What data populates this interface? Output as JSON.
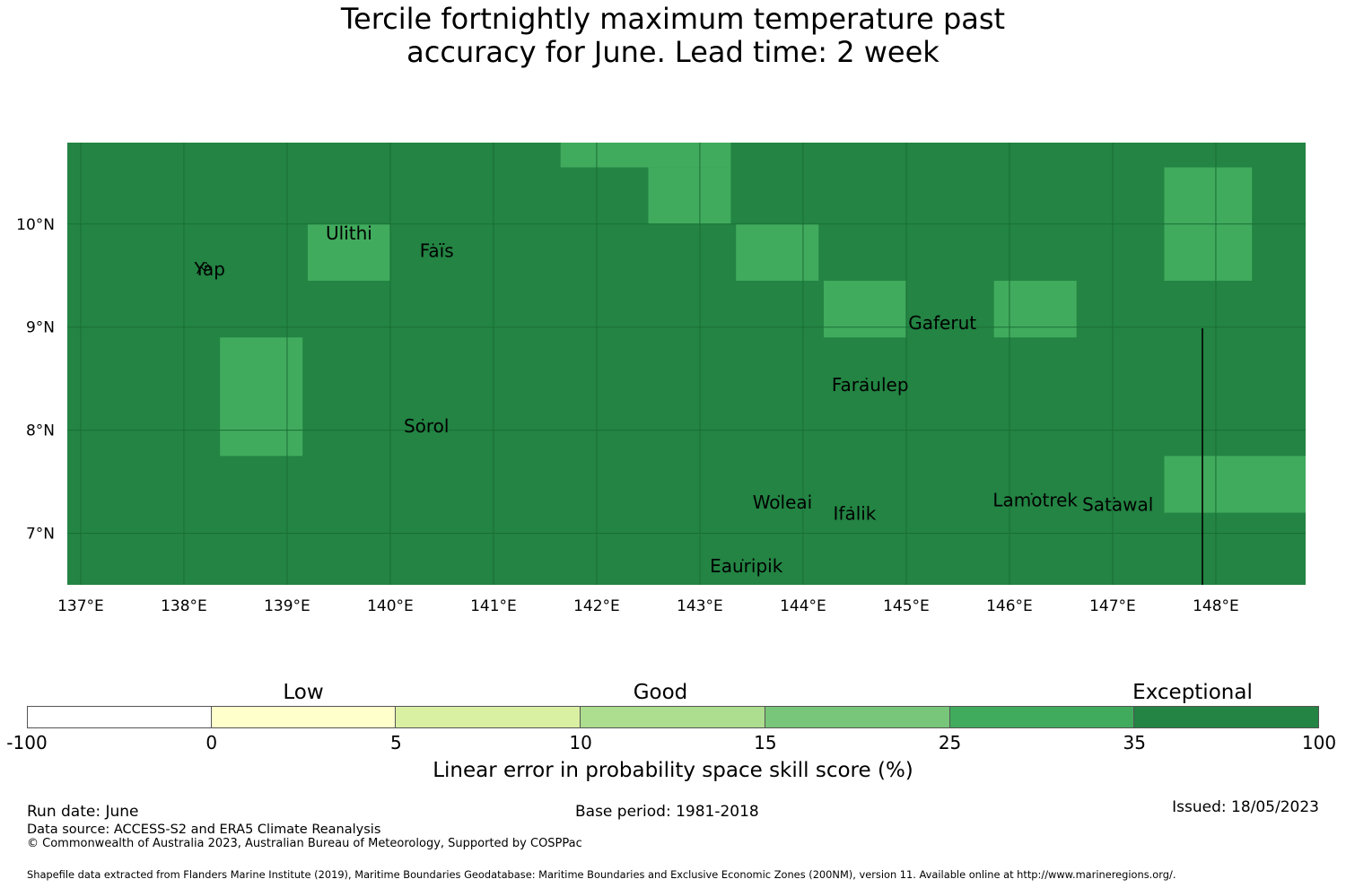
{
  "title": {
    "line1": "Tercile fortnightly maximum temperature past",
    "line2": "accuracy for June. Lead time: 2 week"
  },
  "map": {
    "background_color": "#238443",
    "cell_color": "#41ab5d",
    "lon_ticks": [
      "137°E",
      "138°E",
      "139°E",
      "140°E",
      "141°E",
      "142°E",
      "143°E",
      "144°E",
      "145°E",
      "146°E",
      "147°E",
      "148°E"
    ],
    "lat_ticks": [
      "10°N",
      "9°N",
      "8°N",
      "7°N"
    ],
    "lighter_cells": [
      {
        "lon": [
          141.65,
          143.3
        ],
        "lat": [
          10.55,
          10.8
        ]
      },
      {
        "lon": [
          142.5,
          143.3
        ],
        "lat": [
          10.0,
          10.55
        ]
      },
      {
        "lon": [
          139.2,
          140.0
        ],
        "lat": [
          9.45,
          10.0
        ]
      },
      {
        "lon": [
          143.35,
          144.15
        ],
        "lat": [
          9.45,
          10.0
        ]
      },
      {
        "lon": [
          144.2,
          145.0
        ],
        "lat": [
          8.9,
          9.45
        ]
      },
      {
        "lon": [
          145.85,
          146.65
        ],
        "lat": [
          8.9,
          9.45
        ]
      },
      {
        "lon": [
          147.5,
          148.35
        ],
        "lat": [
          9.45,
          10.55
        ]
      },
      {
        "lon": [
          138.35,
          139.15
        ],
        "lat": [
          7.75,
          8.9
        ]
      },
      {
        "lon": [
          147.5,
          149.0
        ],
        "lat": [
          7.2,
          7.75
        ]
      }
    ],
    "places": [
      {
        "name": "Yap",
        "lon": 138.25,
        "lat": 9.5
      },
      {
        "name": "Ulithi",
        "lon": 139.6,
        "lat": 9.85
      },
      {
        "name": "Faïs",
        "lon": 140.45,
        "lat": 9.68
      },
      {
        "name": "Gaferut",
        "lon": 145.35,
        "lat": 8.98
      },
      {
        "name": "Faraulep",
        "lon": 144.65,
        "lat": 8.38
      },
      {
        "name": "Sorol",
        "lon": 140.35,
        "lat": 7.98
      },
      {
        "name": "Woleai",
        "lon": 143.8,
        "lat": 7.24
      },
      {
        "name": "Ifalik",
        "lon": 144.5,
        "lat": 7.13
      },
      {
        "name": "Lamotrek",
        "lon": 146.25,
        "lat": 7.26
      },
      {
        "name": "Satawal",
        "lon": 147.05,
        "lat": 7.22
      },
      {
        "name": "Eauripik",
        "lon": 143.45,
        "lat": 6.62
      }
    ]
  },
  "legend": {
    "categories": [
      {
        "label": "Low",
        "lower": 0,
        "upper": 5
      },
      {
        "label": "Good",
        "lower": 10,
        "upper": 15
      },
      {
        "label": "Exceptional",
        "lower": 35,
        "upper": 100
      }
    ],
    "bins": [
      {
        "from": "-100",
        "to": "0",
        "color": "#ffffff"
      },
      {
        "from": "0",
        "to": "5",
        "color": "#ffffcc"
      },
      {
        "from": "5",
        "to": "10",
        "color": "#d9f0a3"
      },
      {
        "from": "10",
        "to": "15",
        "color": "#addd8e"
      },
      {
        "from": "15",
        "to": "25",
        "color": "#78c679"
      },
      {
        "from": "25",
        "to": "35",
        "color": "#41ab5d"
      },
      {
        "from": "35",
        "to": "100",
        "color": "#238443"
      }
    ],
    "ticks": [
      "-100",
      "0",
      "5",
      "10",
      "15",
      "25",
      "35",
      "100"
    ],
    "axis_label": "Linear error in probability space skill score (%)"
  },
  "footer": {
    "run_date": "Run date: June",
    "base_period": "Base period: 1981-2018",
    "issued": "Issued: 18/05/2023",
    "data_source": "Data source: ACCESS-S2 and ERA5 Climate Reanalysis",
    "copyright": "© Commonwealth of Australia 2023, Australian Bureau of Meteorology, Supported by COSPPac",
    "shapefile": "Shapefile data extracted from Flanders Marine Institute (2019), Maritime Boundaries Geodatabase: Maritime Boundaries and Exclusive Economic Zones (200NM), version 11. Available online at http://www.marineregions.org/."
  }
}
